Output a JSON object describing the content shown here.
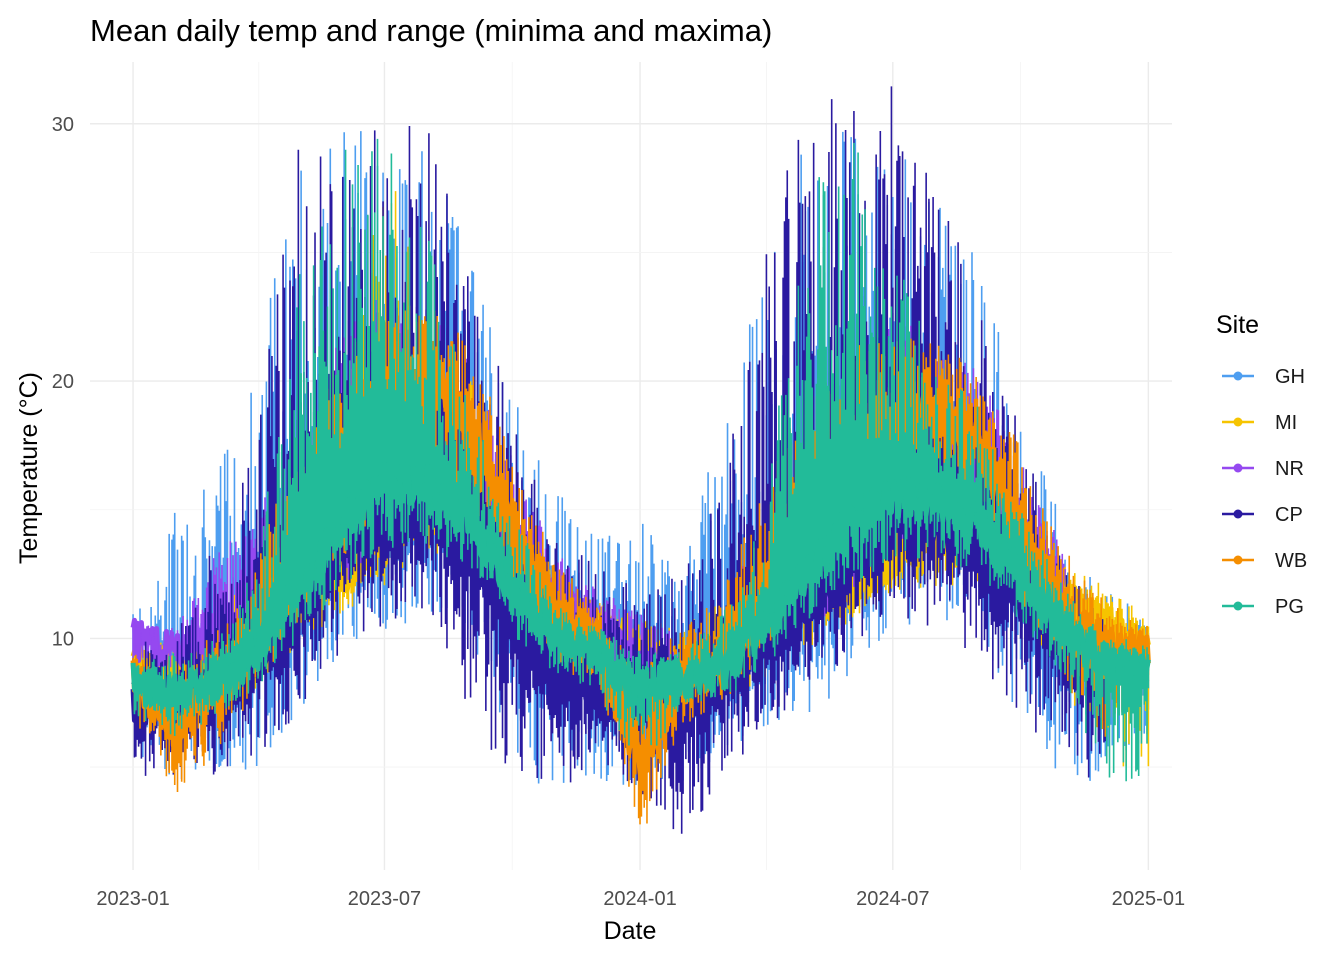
{
  "chart_data": {
    "type": "line",
    "title": "Mean daily temp and range (minima and maxima)",
    "xlabel": "Date",
    "ylabel": "Temperature (°C)",
    "legend_title": "Site",
    "legend_position": "right",
    "grid": true,
    "xlim": [
      "2022-12-01",
      "2025-01-18"
    ],
    "ylim": [
      1.0,
      32.4
    ],
    "x_ticks": [
      "2023-01-01",
      "2023-07-01",
      "2024-01-01",
      "2024-07-01",
      "2025-01-01"
    ],
    "x_tick_labels": [
      "2023-01",
      "2023-07",
      "2024-01",
      "2024-07",
      "2025-01"
    ],
    "y_ticks": [
      10,
      20,
      30
    ],
    "y_tick_labels": [
      "10",
      "20",
      "30"
    ],
    "series": [
      {
        "name": "GH",
        "color": "#4e9ef0",
        "x": [
          "2023-01-01",
          "2023-02-01",
          "2023-03-01",
          "2023-04-01",
          "2023-05-01",
          "2023-06-01",
          "2023-07-01",
          "2023-08-01",
          "2023-09-01",
          "2023-10-01",
          "2023-11-01",
          "2023-12-01",
          "2024-01-01",
          "2024-02-01",
          "2024-03-01",
          "2024-04-01",
          "2024-05-01",
          "2024-06-01",
          "2024-07-01",
          "2024-08-01",
          "2024-09-01",
          "2024-10-01",
          "2024-11-01",
          "2024-12-01",
          "2025-01-01"
        ],
        "mean": [
          8.0,
          8.0,
          8.5,
          9.5,
          11.5,
          13.5,
          14.5,
          15.0,
          14.0,
          11.5,
          9.0,
          8.5,
          8.0,
          8.0,
          8.5,
          10.0,
          11.5,
          13.0,
          14.5,
          15.0,
          14.0,
          11.5,
          9.5,
          8.5,
          9.0
        ],
        "min": [
          5.5,
          4.3,
          4.3,
          5.0,
          7.0,
          9.5,
          10.0,
          11.0,
          10.0,
          4.3,
          4.3,
          4.3,
          4.3,
          4.3,
          5.5,
          6.5,
          7.0,
          8.0,
          10.0,
          11.0,
          9.5,
          7.0,
          4.3,
          4.3,
          6.5
        ],
        "max": [
          11.0,
          15.5,
          16.5,
          22.0,
          30.0,
          30.0,
          30.0,
          29.5,
          25.0,
          20.0,
          16.0,
          14.0,
          15.0,
          14.0,
          18.0,
          26.0,
          30.0,
          30.0,
          30.0,
          27.5,
          25.0,
          19.0,
          14.5,
          12.0,
          11.0
        ]
      },
      {
        "name": "MI",
        "color": "#f6c400",
        "x": [
          "2023-01-01",
          "2023-02-01",
          "2023-03-01",
          "2023-04-01",
          "2023-05-01",
          "2023-06-01",
          "2023-07-01",
          "2023-08-01",
          "2023-09-01",
          "2023-10-01",
          "2023-11-01",
          "2023-12-01",
          "2024-01-01",
          "2024-02-01",
          "2024-03-01",
          "2024-04-01",
          "2024-05-01",
          "2024-06-01",
          "2024-07-01",
          "2024-08-01",
          "2024-09-01",
          "2024-10-01",
          "2024-11-01",
          "2024-12-01",
          "2025-01-01"
        ],
        "mean": [
          9.0,
          8.5,
          8.8,
          9.8,
          11.5,
          12.5,
          13.5,
          16.0,
          16.0,
          13.0,
          11.0,
          10.5,
          9.5,
          8.5,
          8.8,
          10.0,
          11.5,
          12.0,
          13.0,
          14.0,
          14.5,
          13.0,
          11.5,
          10.5,
          9.5
        ],
        "min": [
          7.5,
          6.5,
          7.0,
          8.0,
          9.5,
          11.0,
          12.0,
          13.5,
          12.5,
          10.5,
          9.5,
          9.0,
          4.3,
          7.0,
          7.5,
          8.5,
          9.5,
          10.5,
          11.5,
          12.0,
          12.0,
          10.5,
          8.5,
          4.3,
          5.0
        ],
        "max": [
          10.0,
          10.0,
          11.0,
          13.0,
          15.0,
          17.0,
          29.5,
          22.0,
          20.0,
          16.0,
          12.5,
          11.5,
          11.0,
          10.5,
          11.5,
          14.0,
          17.0,
          18.0,
          18.5,
          18.5,
          17.5,
          15.0,
          13.0,
          12.0,
          11.0
        ]
      },
      {
        "name": "NR",
        "color": "#9549f0",
        "x": [
          "2023-01-01",
          "2023-02-01",
          "2023-03-01",
          "2023-04-01",
          "2023-05-01",
          "2023-06-01",
          "2023-07-01",
          "2023-08-01",
          "2023-09-01",
          "2023-10-01",
          "2023-11-01",
          "2023-12-01",
          "2024-01-01",
          "2024-02-01",
          "2024-03-01",
          "2024-04-01",
          "2024-05-01",
          "2024-06-01",
          "2024-07-01",
          "2024-08-01",
          "2024-09-01",
          "2024-10-01",
          "2024-11-01",
          "2024-12-01",
          "2025-01-01"
        ],
        "mean": [
          10.0,
          9.5,
          10.0,
          11.0,
          12.5,
          14.0,
          15.5,
          17.0,
          16.0,
          13.5,
          11.5,
          10.5,
          9.0,
          8.5,
          9.0,
          10.5,
          12.0,
          13.5,
          15.5,
          16.5,
          16.0,
          14.0,
          12.0,
          null,
          null
        ],
        "min": [
          9.0,
          8.5,
          8.5,
          9.5,
          10.5,
          12.0,
          13.5,
          14.5,
          13.0,
          11.0,
          9.5,
          9.0,
          7.5,
          7.5,
          8.0,
          9.0,
          10.0,
          11.5,
          13.5,
          14.0,
          13.5,
          12.0,
          10.5,
          null,
          null
        ],
        "max": [
          10.5,
          10.5,
          13.5,
          15.0,
          19.0,
          22.0,
          24.0,
          23.0,
          21.0,
          17.0,
          13.5,
          12.0,
          11.0,
          10.0,
          11.5,
          15.0,
          20.0,
          22.0,
          23.0,
          22.5,
          20.5,
          17.0,
          13.5,
          null,
          null
        ]
      },
      {
        "name": "CP",
        "color": "#2a1aa0",
        "x": [
          "2023-01-01",
          "2023-02-01",
          "2023-03-01",
          "2023-04-01",
          "2023-05-01",
          "2023-06-01",
          "2023-07-01",
          "2023-08-01",
          "2023-09-01",
          "2023-10-01",
          "2023-11-01",
          "2023-12-01",
          "2024-01-01",
          "2024-02-01",
          "2024-03-01",
          "2024-04-01",
          "2024-05-01",
          "2024-06-01",
          "2024-07-01",
          "2024-08-01",
          "2024-09-01",
          "2024-10-01",
          "2024-11-01",
          "2024-12-01",
          "2025-01-01"
        ],
        "mean": [
          7.5,
          7.0,
          7.5,
          9.0,
          11.5,
          13.5,
          15.0,
          15.0,
          13.5,
          10.5,
          8.5,
          8.0,
          7.5,
          7.5,
          8.5,
          10.0,
          11.5,
          13.0,
          14.5,
          14.5,
          13.0,
          11.5,
          10.0,
          8.5,
          null
        ],
        "min": [
          4.5,
          4.3,
          4.3,
          5.5,
          7.0,
          9.5,
          10.5,
          11.0,
          7.0,
          4.3,
          4.3,
          4.3,
          3.0,
          1.8,
          4.5,
          6.5,
          8.0,
          9.0,
          10.5,
          10.5,
          9.0,
          7.0,
          5.0,
          4.3,
          null
        ],
        "max": [
          9.5,
          11.0,
          14.5,
          19.0,
          30.0,
          30.0,
          30.0,
          30.0,
          24.0,
          19.0,
          14.0,
          13.0,
          12.0,
          12.5,
          16.0,
          25.0,
          31.5,
          31.5,
          31.8,
          28.0,
          24.0,
          18.0,
          13.0,
          11.0,
          null
        ]
      },
      {
        "name": "WB",
        "color": "#f58e00",
        "x": [
          "2023-01-01",
          "2023-02-01",
          "2023-03-01",
          "2023-04-01",
          "2023-05-01",
          "2023-06-01",
          "2023-07-01",
          "2023-08-01",
          "2023-09-01",
          "2023-10-01",
          "2023-11-01",
          "2023-12-01",
          "2024-01-01",
          "2024-02-01",
          "2024-03-01",
          "2024-04-01",
          "2024-05-01",
          "2024-06-01",
          "2024-07-01",
          "2024-08-01",
          "2024-09-01",
          "2024-10-01",
          "2024-11-01",
          "2024-12-01",
          "2025-01-01"
        ],
        "mean": [
          8.5,
          6.5,
          8.0,
          10.0,
          13.5,
          16.0,
          18.5,
          20.5,
          18.5,
          14.0,
          11.0,
          10.0,
          5.0,
          8.5,
          9.0,
          11.5,
          14.5,
          16.5,
          18.0,
          19.0,
          17.5,
          14.0,
          11.0,
          9.5,
          9.5
        ],
        "min": [
          7.0,
          3.8,
          5.5,
          8.0,
          10.5,
          13.0,
          15.0,
          17.0,
          15.0,
          11.0,
          9.0,
          8.0,
          2.0,
          6.5,
          7.5,
          9.5,
          11.5,
          13.5,
          15.0,
          16.0,
          14.5,
          11.5,
          8.0,
          6.0,
          8.5
        ],
        "max": [
          9.5,
          8.5,
          10.5,
          13.0,
          18.5,
          21.0,
          23.0,
          23.5,
          21.5,
          17.0,
          13.0,
          11.5,
          9.0,
          10.5,
          12.0,
          16.0,
          20.0,
          21.5,
          22.0,
          21.5,
          20.5,
          17.5,
          13.5,
          11.5,
          10.5
        ]
      },
      {
        "name": "PG",
        "color": "#22bb99",
        "x": [
          "2023-01-01",
          "2023-02-01",
          "2023-03-01",
          "2023-04-01",
          "2023-05-01",
          "2023-06-01",
          "2023-07-01",
          "2023-08-01",
          "2023-09-01",
          "2023-10-01",
          "2023-11-01",
          "2023-12-01",
          "2024-01-01",
          "2024-02-01",
          "2024-03-01",
          "2024-04-01",
          "2024-05-01",
          "2024-06-01",
          "2024-07-01",
          "2024-08-01",
          "2024-09-01",
          "2024-10-01",
          "2024-11-01",
          "2024-12-01",
          "2025-01-01"
        ],
        "mean": [
          8.3,
          7.8,
          8.3,
          9.5,
          12.0,
          14.5,
          16.0,
          16.0,
          14.5,
          12.0,
          10.0,
          9.5,
          8.0,
          8.5,
          8.8,
          10.5,
          12.5,
          14.5,
          15.5,
          15.5,
          14.5,
          12.5,
          10.5,
          9.0,
          8.8
        ],
        "min": [
          7.0,
          6.0,
          7.0,
          8.0,
          10.0,
          12.0,
          13.5,
          13.5,
          12.5,
          10.0,
          8.5,
          8.0,
          4.3,
          7.5,
          7.5,
          9.0,
          10.5,
          12.0,
          13.0,
          13.0,
          12.5,
          10.5,
          8.5,
          4.3,
          4.5
        ],
        "max": [
          9.0,
          9.5,
          10.0,
          13.0,
          25.0,
          29.0,
          30.0,
          26.0,
          19.0,
          15.0,
          11.5,
          10.5,
          9.5,
          9.5,
          11.0,
          15.0,
          29.0,
          30.0,
          25.0,
          21.0,
          19.0,
          15.0,
          12.0,
          10.0,
          10.0
        ]
      }
    ]
  }
}
